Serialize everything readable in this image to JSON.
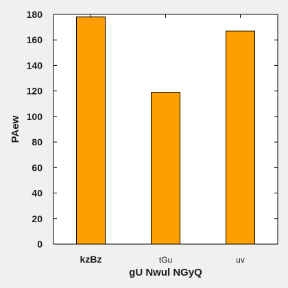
{
  "chart_data": {
    "type": "bar",
    "categories": [
      "kzBz",
      "tGu",
      "uv"
    ],
    "category_bold": [
      true,
      false,
      false
    ],
    "values": [
      178,
      119,
      167
    ],
    "xlabel": "gU Nwul NGyQ",
    "ylabel": "PAew",
    "ylim": [
      0,
      180
    ],
    "yticks": [
      0,
      20,
      40,
      60,
      80,
      100,
      120,
      140,
      160,
      180
    ],
    "grid": false,
    "legend": false,
    "bar_color": "#ff9e00",
    "bar_edge_color": "#000000",
    "plot_background": "#ffffff",
    "figure_background": "#f0f0f0"
  }
}
